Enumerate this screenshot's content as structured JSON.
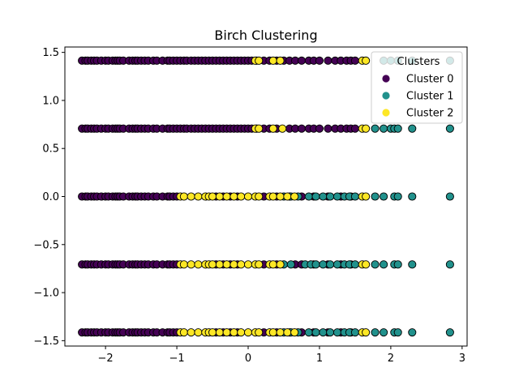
{
  "chart_data": {
    "type": "scatter",
    "title": "Birch Clustering",
    "xlabel": "",
    "ylabel": "",
    "xlim": [
      -2.57,
      3.07
    ],
    "ylim": [
      -1.556,
      1.556
    ],
    "xticks": [
      -2,
      -1,
      0,
      1,
      2,
      3
    ],
    "xtick_labels": [
      "−2",
      "−1",
      "0",
      "1",
      "2",
      "3"
    ],
    "yticks": [
      -1.5,
      -1.0,
      -0.5,
      0.0,
      0.5,
      1.0,
      1.5
    ],
    "ytick_labels": [
      "−1.5",
      "−1.0",
      "−0.5",
      "0.0",
      "0.5",
      "1.0",
      "1.5"
    ],
    "grid": false,
    "legend": {
      "title": "Clusters",
      "position": "top-right"
    },
    "y_levels": [
      1.414,
      0.707,
      0.0,
      -0.707,
      -1.414
    ],
    "series": [
      {
        "name": "Cluster 0",
        "color": "#440154",
        "points": [
          {
            "y": 1.414,
            "x": [
              -2.33,
              -2.28,
              -2.25,
              -2.2,
              -2.16,
              -2.12,
              -2.06,
              -2.0,
              -1.96,
              -1.9,
              -1.86,
              -1.83,
              -1.8,
              -1.75,
              -1.67,
              -1.62,
              -1.58,
              -1.55,
              -1.5,
              -1.45,
              -1.4,
              -1.33,
              -1.28,
              -1.2,
              -1.13,
              -1.1,
              -1.05,
              -1.0,
              -0.95,
              -0.9,
              -0.86,
              -0.8,
              -0.75,
              -0.7,
              -0.65,
              -0.6,
              -0.55,
              -0.5,
              -0.45,
              -0.4,
              -0.35,
              -0.3,
              -0.25,
              -0.2,
              -0.15,
              -0.1,
              -0.05,
              0.0,
              0.05,
              0.12,
              0.22,
              0.3,
              0.4,
              0.5,
              0.58,
              0.66,
              0.75,
              0.85,
              0.92,
              1.0,
              1.12,
              1.22,
              1.3,
              1.38,
              1.44,
              1.5
            ]
          },
          {
            "y": 0.707,
            "x": [
              -2.33,
              -2.28,
              -2.25,
              -2.2,
              -2.16,
              -2.12,
              -2.06,
              -2.0,
              -1.96,
              -1.9,
              -1.86,
              -1.83,
              -1.8,
              -1.75,
              -1.67,
              -1.62,
              -1.58,
              -1.55,
              -1.5,
              -1.45,
              -1.4,
              -1.33,
              -1.28,
              -1.2,
              -1.13,
              -1.1,
              -1.05,
              -1.0,
              -0.95,
              -0.9,
              -0.86,
              -0.8,
              -0.75,
              -0.7,
              -0.65,
              -0.6,
              -0.55,
              -0.5,
              -0.45,
              -0.4,
              -0.35,
              -0.3,
              -0.25,
              -0.2,
              -0.15,
              -0.1,
              -0.05,
              0.0,
              0.05,
              0.12,
              0.22,
              0.3,
              0.4,
              0.58,
              0.66,
              0.75,
              0.85,
              0.92,
              1.0,
              1.12,
              1.22,
              1.3,
              1.38,
              1.44,
              1.5
            ]
          },
          {
            "y": 0.0,
            "x": [
              -2.33,
              -2.28,
              -2.25,
              -2.2,
              -2.16,
              -2.12,
              -2.06,
              -2.0,
              -1.96,
              -1.9,
              -1.86,
              -1.83,
              -1.8,
              -1.75,
              -1.67,
              -1.62,
              -1.58,
              -1.55,
              -1.5,
              -1.45,
              -1.4,
              -1.33,
              -1.28,
              -1.2,
              -1.13,
              -1.1,
              -1.05,
              -1.0,
              -0.45,
              -0.35,
              -0.25,
              -0.15,
              0.22,
              0.4,
              0.58,
              0.75,
              0.92,
              1.12,
              1.3,
              1.44
            ]
          },
          {
            "y": -0.707,
            "x": [
              -2.33,
              -2.28,
              -2.25,
              -2.2,
              -2.16,
              -2.12,
              -2.06,
              -2.0,
              -1.96,
              -1.9,
              -1.86,
              -1.83,
              -1.8,
              -1.75,
              -1.67,
              -1.62,
              -1.58,
              -1.55,
              -1.5,
              -1.45,
              -1.4,
              -1.33,
              -1.28,
              -1.2,
              -1.13,
              -1.1,
              -1.05,
              -1.0,
              -0.45,
              -0.35,
              -0.25,
              -0.15,
              0.22,
              0.4,
              0.66,
              0.75,
              0.92,
              1.12,
              1.3,
              1.44
            ]
          },
          {
            "y": -1.414,
            "x": [
              -2.33,
              -2.28,
              -2.25,
              -2.2,
              -2.16,
              -2.12,
              -2.06,
              -2.0,
              -1.96,
              -1.9,
              -1.86,
              -1.83,
              -1.8,
              -1.75,
              -1.67,
              -1.62,
              -1.58,
              -1.55,
              -1.5,
              -1.45,
              -1.4,
              -1.33,
              -1.28,
              -1.2,
              -1.13,
              -1.1,
              -1.05,
              -1.0,
              -0.45,
              -0.35,
              -0.25,
              -0.15,
              0.22,
              0.4,
              0.58,
              0.75,
              0.92,
              1.12,
              1.3,
              1.44
            ]
          }
        ]
      },
      {
        "name": "Cluster 1",
        "color": "#21918c",
        "points": [
          {
            "y": 1.414,
            "x": [
              1.9,
              2.0,
              2.1,
              2.3,
              2.83
            ]
          },
          {
            "y": 0.707,
            "x": [
              1.78,
              1.9,
              2.0,
              2.05,
              2.1,
              2.3,
              2.83
            ]
          },
          {
            "y": 0.0,
            "x": [
              0.5,
              0.6,
              0.7,
              0.85,
              0.95,
              1.05,
              1.15,
              1.25,
              1.35,
              1.42,
              1.5,
              1.78,
              1.9,
              2.05,
              2.1,
              2.3,
              2.83
            ]
          },
          {
            "y": -0.707,
            "x": [
              0.5,
              0.6,
              0.8,
              0.88,
              0.95,
              1.05,
              1.15,
              1.25,
              1.35,
              1.42,
              1.5,
              1.78,
              1.9,
              2.05,
              2.1,
              2.3,
              2.83
            ]
          },
          {
            "y": -1.414,
            "x": [
              0.5,
              0.6,
              0.7,
              0.85,
              0.95,
              1.05,
              1.15,
              1.25,
              1.35,
              1.42,
              1.5,
              1.78,
              1.9,
              2.05,
              2.1,
              2.3,
              2.83
            ]
          }
        ]
      },
      {
        "name": "Cluster 2",
        "color": "#fde725",
        "points": [
          {
            "y": 1.414,
            "x": [
              0.1,
              0.15,
              0.35,
              0.45,
              1.6,
              1.65
            ]
          },
          {
            "y": 0.707,
            "x": [
              0.1,
              0.15,
              0.35,
              0.48,
              1.6,
              1.65
            ]
          },
          {
            "y": 0.0,
            "x": [
              -0.95,
              -0.9,
              -0.8,
              -0.7,
              -0.6,
              -0.55,
              -0.5,
              -0.4,
              -0.3,
              -0.2,
              -0.1,
              0.0,
              0.1,
              0.15,
              0.3,
              0.35,
              0.45,
              0.55,
              0.65,
              1.6,
              1.65
            ]
          },
          {
            "y": -0.707,
            "x": [
              -0.95,
              -0.9,
              -0.8,
              -0.7,
              -0.6,
              -0.55,
              -0.5,
              -0.4,
              -0.3,
              -0.2,
              -0.1,
              0.0,
              0.1,
              0.15,
              0.3,
              0.35,
              0.45,
              1.6,
              1.65
            ]
          },
          {
            "y": -1.414,
            "x": [
              -0.95,
              -0.9,
              -0.8,
              -0.7,
              -0.6,
              -0.55,
              -0.5,
              -0.4,
              -0.3,
              -0.2,
              -0.1,
              0.0,
              0.1,
              0.15,
              0.3,
              0.35,
              0.45,
              0.55,
              0.65,
              1.6,
              1.65
            ]
          }
        ]
      }
    ]
  }
}
